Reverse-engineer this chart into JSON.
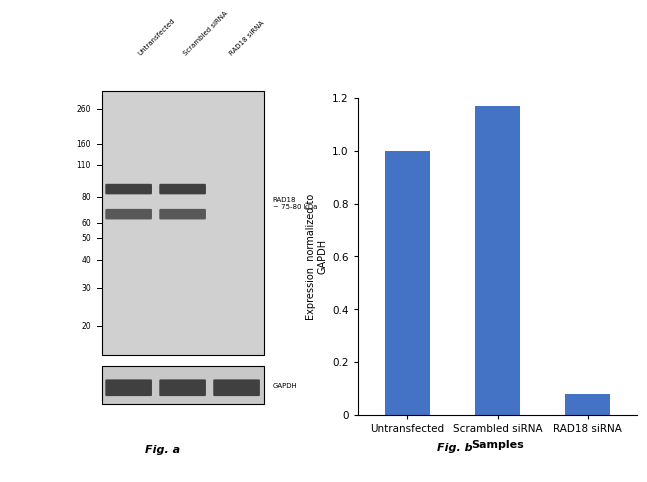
{
  "bar_categories": [
    "Untransfected",
    "Scrambled siRNA",
    "RAD18 siRNA"
  ],
  "bar_values": [
    1.0,
    1.17,
    0.08
  ],
  "bar_color": "#4472C4",
  "ylabel": "Expression  normalized to\nGAPDH",
  "xlabel": "Samples",
  "ylim": [
    0,
    1.2
  ],
  "yticks": [
    0,
    0.2,
    0.4,
    0.6,
    0.8,
    1.0,
    1.2
  ],
  "fig_b_label": "Fig. b",
  "fig_a_label": "Fig. a",
  "wb_marker_labels": [
    "260",
    "160",
    "110",
    "80",
    "60",
    "50",
    "40",
    "30",
    "20"
  ],
  "rad18_label": "RAD18\n~ 75-80 kDa",
  "gapdh_label": "GAPDH",
  "col_labels": [
    "Untransfected",
    "Scrambled siRNA",
    "RAD18 siRNA"
  ],
  "background_color": "#ffffff",
  "wb_bg_color": "#d0d0d0",
  "gapdh_bg_color": "#c8c8c8",
  "band_color_dark": "#404040",
  "band_color_mid": "#585858",
  "band_color_light": "#707070"
}
